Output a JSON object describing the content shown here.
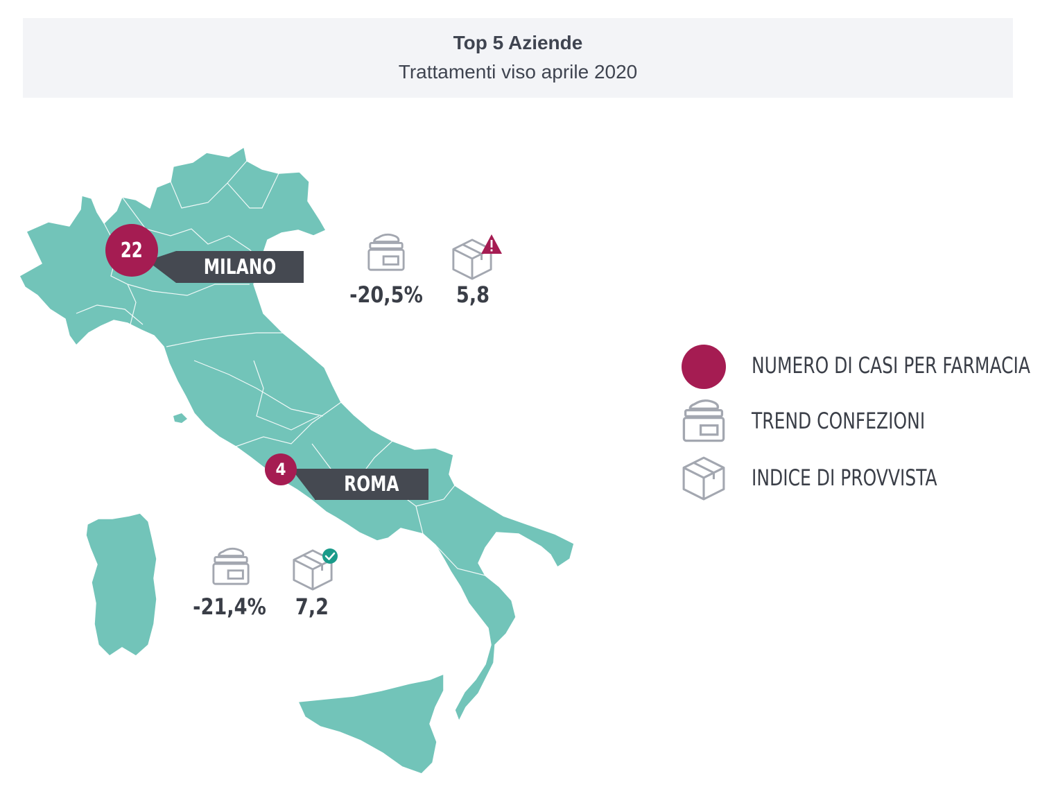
{
  "header": {
    "title": "Top 5 Aziende",
    "subtitle": "Trattamenti viso aprile 2020"
  },
  "colors": {
    "map_fill": "#72c4b9",
    "map_border": "#ffffff",
    "pin": "#a51c52",
    "tag": "#454951",
    "icon_stroke": "#a3a7b0",
    "alert": "#a51c52",
    "check": "#1a9b8a"
  },
  "cities": [
    {
      "name": "MILANO",
      "cases": "22",
      "trend": "-20,5%",
      "stock_index": "5,8",
      "stock_badge": "alert-icon"
    },
    {
      "name": "ROMA",
      "cases": "4",
      "trend": "-21,4%",
      "stock_index": "7,2",
      "stock_badge": "check-icon"
    }
  ],
  "legend": [
    {
      "label": "NUMERO DI CASI PER FARMACIA",
      "icon": "circle-marker-icon"
    },
    {
      "label": "TREND CONFEZIONI",
      "icon": "cream-jar-icon"
    },
    {
      "label": "INDICE DI PROVVISTA",
      "icon": "box-icon"
    }
  ]
}
